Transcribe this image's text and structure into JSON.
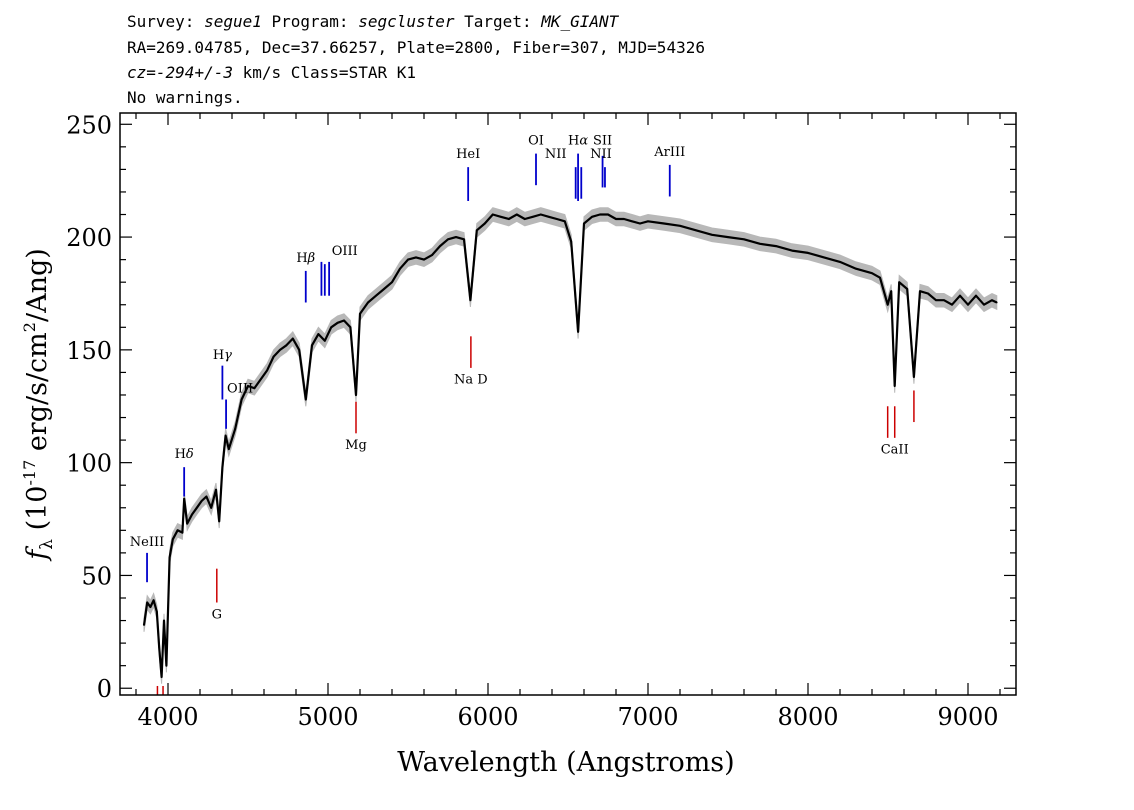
{
  "header": {
    "line1": {
      "survey_label": "Survey: ",
      "survey": "segue1",
      "program_label": " Program: ",
      "program": "segcluster",
      "target_label": " Target: ",
      "target": "MK_GIANT"
    },
    "line2": "RA=269.04785, Dec=37.66257, Plate=2800, Fiber=307, MJD=54326",
    "line3": {
      "cz_label": "cz=",
      "cz_value": "-294+/-3",
      "cz_rest": " km/s Class=STAR K1"
    },
    "line4": "No warnings."
  },
  "chart_data": {
    "type": "line",
    "xlabel": "Wavelength (Angstroms)",
    "ylabel_prefix": "f",
    "ylabel_sub": "λ",
    "ylabel_open": " (10",
    "ylabel_exp": "-17",
    "ylabel_mid": " erg/s/cm",
    "ylabel_exp2": "2",
    "ylabel_close": "/Ang)",
    "xlim": [
      3700,
      9300
    ],
    "ylim": [
      -3,
      255
    ],
    "x_ticks": [
      4000,
      5000,
      6000,
      7000,
      8000,
      9000
    ],
    "x_tick_labels": [
      "4000",
      "5000",
      "6000",
      "7000",
      "8000",
      "9000"
    ],
    "y_ticks": [
      0,
      50,
      100,
      150,
      200,
      250
    ],
    "y_tick_labels": [
      "0",
      "50",
      "100",
      "150",
      "200",
      "250"
    ],
    "grid": false,
    "series": [
      {
        "color": "#000000",
        "error_color": "#b8b8b8",
        "x": [
          3850,
          3870,
          3890,
          3910,
          3930,
          3945,
          3960,
          3975,
          3990,
          4010,
          4030,
          4060,
          4090,
          4101,
          4120,
          4150,
          4180,
          4210,
          4240,
          4270,
          4300,
          4320,
          4340,
          4360,
          4380,
          4420,
          4460,
          4500,
          4540,
          4580,
          4620,
          4660,
          4700,
          4740,
          4780,
          4820,
          4861,
          4900,
          4940,
          4980,
          5020,
          5060,
          5100,
          5140,
          5175,
          5200,
          5250,
          5300,
          5350,
          5400,
          5450,
          5500,
          5550,
          5600,
          5650,
          5700,
          5750,
          5800,
          5850,
          5890,
          5930,
          5980,
          6030,
          6080,
          6130,
          6180,
          6230,
          6280,
          6330,
          6380,
          6430,
          6480,
          6520,
          6563,
          6600,
          6650,
          6700,
          6750,
          6800,
          6850,
          6900,
          6950,
          7000,
          7100,
          7200,
          7300,
          7400,
          7500,
          7600,
          7700,
          7800,
          7900,
          8000,
          8100,
          8200,
          8300,
          8400,
          8450,
          8498,
          8520,
          8542,
          8570,
          8620,
          8662,
          8700,
          8750,
          8800,
          8850,
          8900,
          8950,
          9000,
          9050,
          9100,
          9150,
          9180
        ],
        "y": [
          28,
          38,
          36,
          39,
          34,
          18,
          5,
          30,
          10,
          58,
          66,
          70,
          69,
          84,
          73,
          77,
          80,
          83,
          85,
          80,
          88,
          74,
          98,
          112,
          106,
          115,
          128,
          134,
          133,
          137,
          141,
          147,
          150,
          152,
          155,
          150,
          128,
          152,
          157,
          154,
          160,
          162,
          163,
          160,
          130,
          166,
          171,
          174,
          177,
          180,
          186,
          190,
          191,
          190,
          192,
          196,
          199,
          200,
          199,
          172,
          203,
          206,
          210,
          209,
          208,
          210,
          208,
          209,
          210,
          209,
          208,
          207,
          198,
          158,
          206,
          209,
          210,
          210,
          208,
          208,
          207,
          206,
          207,
          206,
          205,
          203,
          201,
          200,
          199,
          197,
          196,
          194,
          193,
          191,
          189,
          186,
          184,
          182,
          170,
          176,
          134,
          180,
          177,
          138,
          176,
          175,
          172,
          172,
          170,
          174,
          170,
          174,
          170,
          172,
          171
        ],
        "err": 3
      }
    ],
    "annotations": [
      {
        "label": "NeIII",
        "x": 3869,
        "color": "#0000cc",
        "y1": 47,
        "y2": 60,
        "label_y": 63,
        "sub": ""
      },
      {
        "label": "H",
        "sub": "δ",
        "x": 4101,
        "color": "#0000cc",
        "y1": 85,
        "y2": 98,
        "label_y": 102
      },
      {
        "label": "H",
        "sub": "γ",
        "x": 4340,
        "color": "#0000cc",
        "y1": 128,
        "y2": 143,
        "label_y": 146
      },
      {
        "label": "OIII",
        "x": 4363,
        "color": "#0000cc",
        "y1": 115,
        "y2": 128,
        "label_y": 131,
        "sub": "",
        "dx": 14
      },
      {
        "label": "H",
        "sub": "β",
        "x": 4861,
        "color": "#0000cc",
        "y1": 171,
        "y2": 185,
        "label_y": 189
      },
      {
        "label": "OIII",
        "x": 4980,
        "color": "#0000cc",
        "y1": 174,
        "y2": 188,
        "label_y": 192,
        "sub": "",
        "dx": 20
      },
      {
        "label": "",
        "x": 4959,
        "color": "#0000cc",
        "y1": 174,
        "y2": 189,
        "label_y": 0,
        "sub": ""
      },
      {
        "label": "",
        "x": 5007,
        "color": "#0000cc",
        "y1": 174,
        "y2": 189,
        "label_y": 0,
        "sub": ""
      },
      {
        "label": "HeI",
        "x": 5876,
        "color": "#0000cc",
        "y1": 216,
        "y2": 231,
        "label_y": 235,
        "sub": ""
      },
      {
        "label": "OI",
        "x": 6300,
        "color": "#0000cc",
        "y1": 223,
        "y2": 237,
        "label_y": 241,
        "sub": ""
      },
      {
        "label": "NII",
        "x": 6548,
        "color": "#0000cc",
        "y1": 217,
        "y2": 231,
        "label_y": 235,
        "sub": "",
        "dx": -20
      },
      {
        "label": "H",
        "sub": "α",
        "x": 6563,
        "color": "#0000cc",
        "y1": 216,
        "y2": 237,
        "label_y": 241
      },
      {
        "label": "",
        "x": 6583,
        "color": "#0000cc",
        "y1": 217,
        "y2": 231,
        "label_y": 0,
        "sub": ""
      },
      {
        "label": "SII",
        "x": 6716,
        "color": "#0000cc",
        "y1": 222,
        "y2": 236,
        "label_y": 241,
        "sub": ""
      },
      {
        "label": "NII",
        "x": 6731,
        "color": "#0000cc",
        "y1": 222,
        "y2": 231,
        "label_y": 235,
        "sub": "",
        "dx": -4
      },
      {
        "label": "ArIII",
        "x": 7136,
        "color": "#0000cc",
        "y1": 218,
        "y2": 232,
        "label_y": 236,
        "sub": ""
      },
      {
        "label": "",
        "x": 3934,
        "color": "#cc0000",
        "y1": -3,
        "y2": 1,
        "label_y": 0,
        "sub": ""
      },
      {
        "label": "",
        "x": 3969,
        "color": "#cc0000",
        "y1": -3,
        "y2": 1,
        "label_y": 0,
        "sub": ""
      },
      {
        "label": "G",
        "x": 4305,
        "color": "#cc0000",
        "y1": 38,
        "y2": 53,
        "label_y": 31,
        "sub": "",
        "below": true
      },
      {
        "label": "Mg",
        "x": 5175,
        "color": "#cc0000",
        "y1": 113,
        "y2": 127,
        "label_y": 106,
        "sub": "",
        "below": true
      },
      {
        "label": "Na D",
        "x": 5893,
        "color": "#cc0000",
        "y1": 142,
        "y2": 156,
        "label_y": 135,
        "sub": "",
        "below": true
      },
      {
        "label": "CaII",
        "x": 8542,
        "color": "#cc0000",
        "y1": 111,
        "y2": 125,
        "label_y": 104,
        "sub": "",
        "below": true
      },
      {
        "label": "",
        "x": 8498,
        "color": "#cc0000",
        "y1": 111,
        "y2": 125,
        "label_y": 0,
        "sub": ""
      },
      {
        "label": "",
        "x": 8662,
        "color": "#cc0000",
        "y1": 118,
        "y2": 132,
        "label_y": 0,
        "sub": ""
      }
    ]
  }
}
